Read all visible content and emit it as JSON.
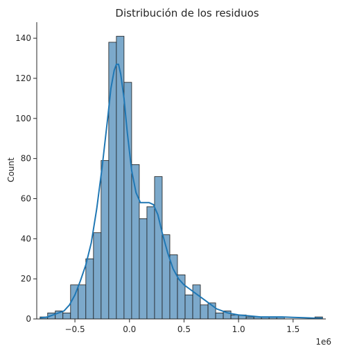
{
  "chart_data": {
    "type": "bar",
    "title": "Distribución de los residuos",
    "xlabel": "",
    "ylabel": "Count",
    "x_offset_label": "1e6",
    "x_scale_note": "x values in units of 1e6",
    "xlim": [
      -0.85,
      1.8
    ],
    "ylim": [
      0,
      148
    ],
    "x_ticks": [
      -0.5,
      0.0,
      0.5,
      1.0,
      1.5
    ],
    "x_tick_labels": [
      "−0.5",
      "0.0",
      "0.5",
      "1.0",
      "1.5"
    ],
    "y_ticks": [
      0,
      20,
      40,
      60,
      80,
      100,
      120,
      140
    ],
    "y_tick_labels": [
      "0",
      "20",
      "40",
      "60",
      "80",
      "100",
      "120",
      "140"
    ],
    "grid": false,
    "bar_color": "#7ca9cb",
    "bar_edge_color": "#1a1a1a",
    "kde_color": "#1f77b4",
    "bins": [
      {
        "x0": -0.82,
        "x1": -0.75,
        "count": 1
      },
      {
        "x0": -0.75,
        "x1": -0.68,
        "count": 3
      },
      {
        "x0": -0.68,
        "x1": -0.61,
        "count": 4
      },
      {
        "x0": -0.61,
        "x1": -0.54,
        "count": 3
      },
      {
        "x0": -0.54,
        "x1": -0.47,
        "count": 17
      },
      {
        "x0": -0.47,
        "x1": -0.4,
        "count": 17
      },
      {
        "x0": -0.4,
        "x1": -0.33,
        "count": 30
      },
      {
        "x0": -0.33,
        "x1": -0.26,
        "count": 43
      },
      {
        "x0": -0.26,
        "x1": -0.19,
        "count": 79
      },
      {
        "x0": -0.19,
        "x1": -0.12,
        "count": 138
      },
      {
        "x0": -0.12,
        "x1": -0.05,
        "count": 141
      },
      {
        "x0": -0.05,
        "x1": 0.02,
        "count": 118
      },
      {
        "x0": 0.02,
        "x1": 0.09,
        "count": 77
      },
      {
        "x0": 0.09,
        "x1": 0.16,
        "count": 50
      },
      {
        "x0": 0.16,
        "x1": 0.23,
        "count": 56
      },
      {
        "x0": 0.23,
        "x1": 0.3,
        "count": 71
      },
      {
        "x0": 0.3,
        "x1": 0.37,
        "count": 42
      },
      {
        "x0": 0.37,
        "x1": 0.44,
        "count": 32
      },
      {
        "x0": 0.44,
        "x1": 0.51,
        "count": 22
      },
      {
        "x0": 0.51,
        "x1": 0.58,
        "count": 12
      },
      {
        "x0": 0.58,
        "x1": 0.65,
        "count": 17
      },
      {
        "x0": 0.65,
        "x1": 0.72,
        "count": 7
      },
      {
        "x0": 0.72,
        "x1": 0.79,
        "count": 8
      },
      {
        "x0": 0.79,
        "x1": 0.86,
        "count": 3
      },
      {
        "x0": 0.86,
        "x1": 0.93,
        "count": 4
      },
      {
        "x0": 0.93,
        "x1": 1.0,
        "count": 2
      },
      {
        "x0": 1.0,
        "x1": 1.07,
        "count": 2
      },
      {
        "x0": 1.07,
        "x1": 1.14,
        "count": 1
      },
      {
        "x0": 1.14,
        "x1": 1.21,
        "count": 1
      },
      {
        "x0": 1.21,
        "x1": 1.28,
        "count": 1
      },
      {
        "x0": 1.28,
        "x1": 1.35,
        "count": 1
      },
      {
        "x0": 1.35,
        "x1": 1.42,
        "count": 1
      },
      {
        "x0": 1.42,
        "x1": 1.49,
        "count": 0
      },
      {
        "x0": 1.49,
        "x1": 1.56,
        "count": 0
      },
      {
        "x0": 1.56,
        "x1": 1.63,
        "count": 0
      },
      {
        "x0": 1.63,
        "x1": 1.7,
        "count": 0
      },
      {
        "x0": 1.7,
        "x1": 1.77,
        "count": 1
      }
    ],
    "kde": {
      "x": [
        -0.82,
        -0.75,
        -0.7,
        -0.65,
        -0.6,
        -0.55,
        -0.5,
        -0.45,
        -0.4,
        -0.35,
        -0.3,
        -0.25,
        -0.2,
        -0.17,
        -0.14,
        -0.12,
        -0.1,
        -0.08,
        -0.05,
        -0.02,
        0.02,
        0.06,
        0.1,
        0.14,
        0.18,
        0.22,
        0.26,
        0.3,
        0.35,
        0.4,
        0.45,
        0.5,
        0.55,
        0.6,
        0.65,
        0.7,
        0.8,
        0.9,
        1.0,
        1.1,
        1.2,
        1.3,
        1.4,
        1.5,
        1.6,
        1.7,
        1.77
      ],
      "y": [
        0.5,
        1,
        2,
        3,
        4,
        7,
        12,
        19,
        27,
        38,
        55,
        76,
        100,
        115,
        124,
        127,
        127,
        122,
        110,
        93,
        74,
        63,
        58,
        58,
        58,
        57,
        52,
        43,
        33,
        25,
        20,
        17,
        15,
        13,
        11,
        9,
        5,
        3,
        2,
        1.5,
        1,
        1,
        1,
        0.8,
        0.6,
        0.4,
        0.3
      ]
    }
  }
}
